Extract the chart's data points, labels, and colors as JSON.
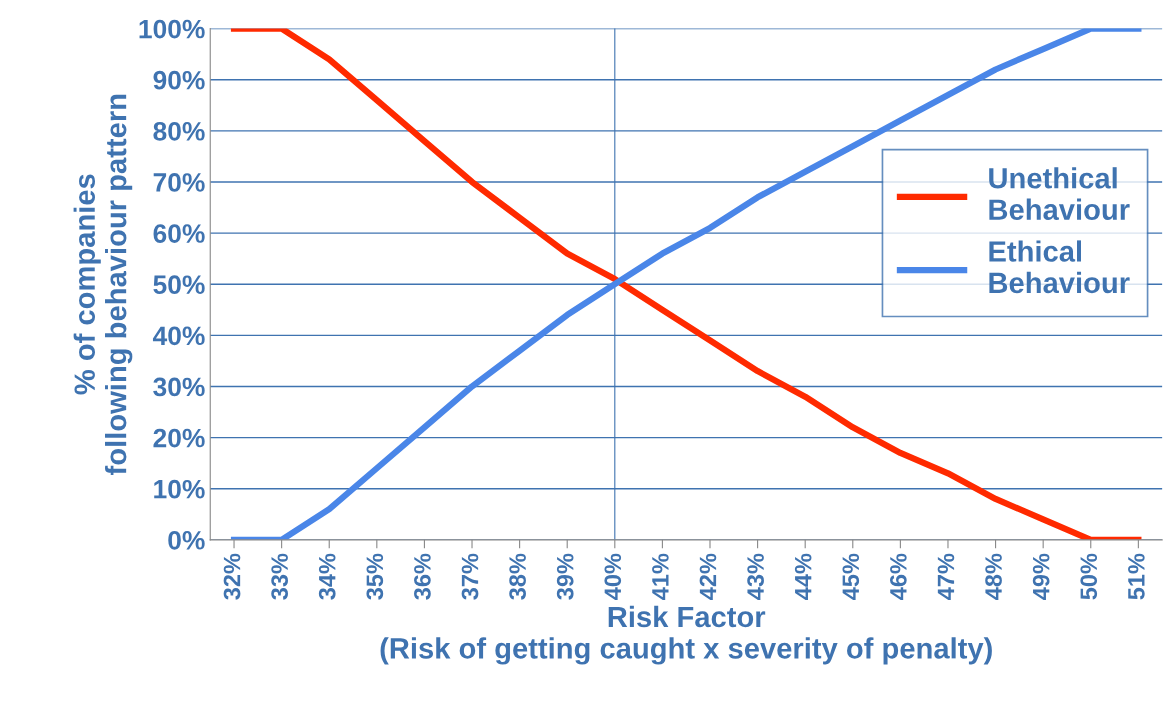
{
  "chart_data": {
    "type": "line",
    "xlabel": "Risk Factor\n(Risk of getting caught x severity of penalty)",
    "ylabel": "% of companies\nfollowing behaviour pattern",
    "categories": [
      "32%",
      "33%",
      "34%",
      "35%",
      "36%",
      "37%",
      "38%",
      "39%",
      "40%",
      "41%",
      "42%",
      "43%",
      "44%",
      "45%",
      "46%",
      "47%",
      "48%",
      "49%",
      "50%",
      "51%"
    ],
    "series": [
      {
        "name": "Unethical\nBehaviour",
        "color": "#ff2a00",
        "values": [
          100,
          100,
          94,
          86,
          78,
          70,
          63,
          56,
          51,
          45,
          39,
          33,
          28,
          22,
          17,
          13,
          8,
          4,
          0,
          0
        ]
      },
      {
        "name": "Ethical\nBehaviour",
        "color": "#4a86e8",
        "values": [
          0,
          0,
          6,
          14,
          22,
          30,
          37,
          44,
          50,
          56,
          61,
          67,
          72,
          77,
          82,
          87,
          92,
          96,
          100,
          100
        ]
      }
    ],
    "ylim": [
      0,
      100
    ],
    "yticks": [
      {
        "value": 0,
        "label": "0%"
      },
      {
        "value": 10,
        "label": "10%"
      },
      {
        "value": 20,
        "label": "20%"
      },
      {
        "value": 30,
        "label": "30%"
      },
      {
        "value": 40,
        "label": "40%"
      },
      {
        "value": 50,
        "label": "50%"
      },
      {
        "value": 60,
        "label": "60%"
      },
      {
        "value": 70,
        "label": "70%"
      },
      {
        "value": 80,
        "label": "80%"
      },
      {
        "value": 90,
        "label": "90%"
      },
      {
        "value": 100,
        "label": "100%"
      }
    ],
    "ref_lines": [
      {
        "axis": "x",
        "value": "40%",
        "color": "#3f73b0"
      }
    ],
    "grid": "y",
    "legend": "right",
    "marker": "none",
    "line_style": "solid"
  }
}
